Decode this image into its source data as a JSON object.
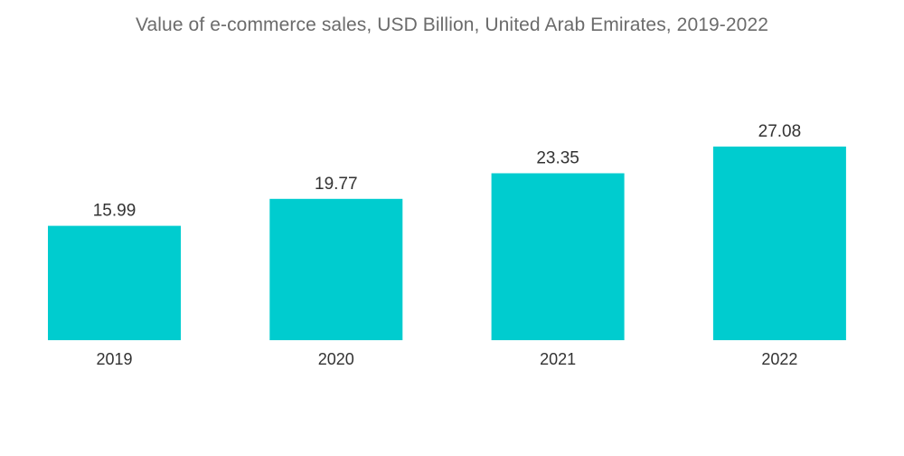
{
  "chart_data": {
    "type": "bar",
    "title": "Value of e-commerce sales, USD Billion, United Arab Emirates, 2019-2022",
    "categories": [
      "2019",
      "2020",
      "2021",
      "2022"
    ],
    "values": [
      15.99,
      19.77,
      23.35,
      27.08
    ],
    "value_labels": [
      "15.99",
      "19.77",
      "23.35",
      "27.08"
    ],
    "xlabel": "",
    "ylabel": "",
    "ylim": [
      0,
      27.08
    ],
    "grid": false,
    "legend": "none",
    "bar_color": "#00cccf"
  }
}
